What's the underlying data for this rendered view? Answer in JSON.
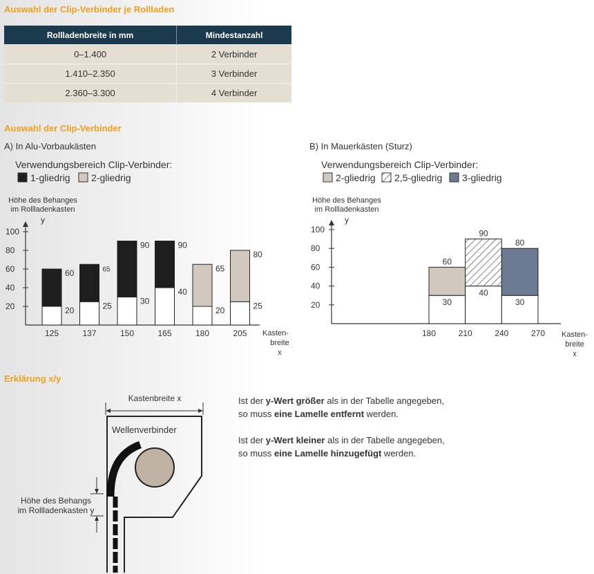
{
  "heading_table": "Auswahl der Clip-Verbinder je Rollladen",
  "table": {
    "headers": [
      "Rollladenbreite in mm",
      "Mindestanzahl"
    ],
    "rows": [
      [
        "0–1.400",
        "2 Verbinder"
      ],
      [
        "1.410–2.350",
        "3 Verbinder"
      ],
      [
        "2.360–3.300",
        "4 Verbinder"
      ]
    ]
  },
  "heading_charts": "Auswahl der Clip-Verbinder",
  "colors": {
    "accent": "#f0a01c",
    "table_header": "#1c3a4e",
    "table_row": "#e5ded2",
    "black_bar": "#1e1e1e",
    "beige_bar": "#d1c9c0",
    "blue_bar": "#6b7a92"
  },
  "chart_a": {
    "subtitle": "A) In Alu-Vorbaukästen",
    "legend_title": "Verwendungsbereich Clip-Verbinder:",
    "legend": [
      {
        "label": "1-gliedrig",
        "fill": "#1e1e1e"
      },
      {
        "label": "2-gliedrig",
        "fill": "#d1c9c0"
      }
    ],
    "ylabel_line1": "Höhe des Behanges",
    "ylabel_line2": "im Rollladenkasten",
    "ylabel_var": "y",
    "xlabel_line1": "Kasten-",
    "xlabel_line2": "breite",
    "xlabel_var": "x"
  },
  "chart_b": {
    "subtitle": "B) In Mauerkästen (Sturz)",
    "legend_title": "Verwendungsbereich Clip-Verbinder:",
    "legend": [
      {
        "label": "2-gliedrig",
        "fill": "#d1c9c0"
      },
      {
        "label": "2,5-gliedrig",
        "fill": "hatch"
      },
      {
        "label": "3-gliedrig",
        "fill": "#6b7a92"
      }
    ],
    "ylabel_line1": "Höhe des Behanges",
    "ylabel_line2": "im Rollladenkasten",
    "ylabel_var": "y",
    "xlabel_line1": "Kasten-",
    "xlabel_line2": "breite",
    "xlabel_var": "x"
  },
  "chart_data": [
    {
      "type": "bar",
      "variant": "floating-range",
      "y_ticks": [
        20,
        40,
        60,
        80,
        100
      ],
      "ylim": [
        0,
        110
      ],
      "categories": [
        "125",
        "137",
        "150",
        "165",
        "180",
        "205"
      ],
      "ranges": [
        {
          "low": 20,
          "high": 60,
          "type": "1-gliedrig",
          "low_label": "20",
          "high_label": "60"
        },
        {
          "low": 25,
          "high": 65,
          "type": "1-gliedrig",
          "low_label": "25",
          "high_label": "65"
        },
        {
          "low": 30,
          "high": 90,
          "type": "1-gliedrig",
          "low_label": "30",
          "high_label": "90"
        },
        {
          "low": 40,
          "high": 90,
          "type": "1-gliedrig",
          "low_label": "40",
          "high_label": "90"
        },
        {
          "low": 20,
          "high": 65,
          "type": "2-gliedrig",
          "low_label": "20",
          "high_label": "65"
        },
        {
          "low": 25,
          "high": 80,
          "type": "2-gliedrig",
          "low_label": "25",
          "high_label": "80"
        }
      ]
    },
    {
      "type": "bar",
      "variant": "floating-range",
      "y_ticks": [
        20,
        40,
        60,
        80,
        100
      ],
      "ylim": [
        0,
        110
      ],
      "x_ticks": [
        "180",
        "210",
        "240",
        "270"
      ],
      "ranges": [
        {
          "x_from": 180,
          "x_to": 210,
          "low": 30,
          "high": 60,
          "type": "2-gliedrig",
          "low_label": "30",
          "high_label": "60"
        },
        {
          "x_from": 210,
          "x_to": 240,
          "low": 40,
          "high": 90,
          "type": "2,5-gliedrig",
          "low_label": "40",
          "high_label": "90"
        },
        {
          "x_from": 240,
          "x_to": 270,
          "low": 30,
          "high": 80,
          "type": "3-gliedrig",
          "low_label": "30",
          "high_label": "80"
        }
      ]
    }
  ],
  "heading_explain": "Erklärung x/y",
  "diagram": {
    "kasten_label": "Kastenbreite x",
    "wellen_label": "Wellenverbinder",
    "hoehe_line1": "Höhe des Behangs",
    "hoehe_line2": "im Rollladenkasten y"
  },
  "explain": {
    "p1": {
      "t1": "Ist der ",
      "b1": "y-Wert größer",
      "t2": " als in der Tabelle angegeben,",
      "t3": "so muss ",
      "b2": "eine Lamelle entfernt",
      "t4": " werden."
    },
    "p2": {
      "t1": "Ist der ",
      "b1": "y-Wert kleiner",
      "t2": " als in der Tabelle angegeben,",
      "t3": "so muss ",
      "b2": "eine Lamelle hinzugefügt",
      "t4": " werden."
    }
  }
}
